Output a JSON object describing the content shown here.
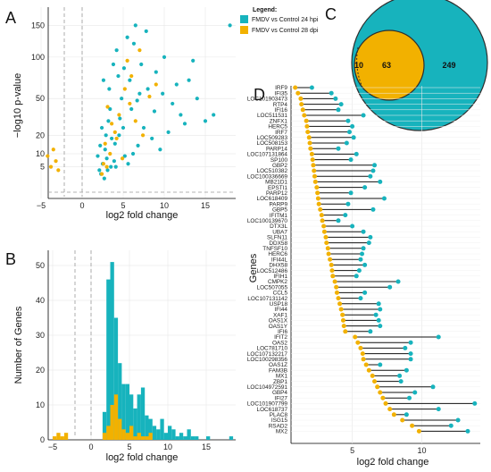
{
  "panels": {
    "a": "A",
    "b": "B",
    "c": "C",
    "d": "D"
  },
  "colors": {
    "teal": "#17b3bd",
    "gold": "#f2b100",
    "outline": "#2e2e2e"
  },
  "legend": {
    "title": "Legend:",
    "items": [
      "FMDV vs Control 24 hpi",
      "FMDV vs Control 28 dpi"
    ]
  },
  "chart_data": [
    {
      "type": "scatter",
      "xlabel": "log2 fold change",
      "ylabel": "−log10 p-value",
      "xticks": [
        "−5",
        "0",
        "5",
        "10",
        "15"
      ],
      "yticks": [
        "5",
        "10",
        "20",
        "50",
        "100",
        "150"
      ],
      "series": [
        {
          "name": "FMDV vs Control 24 hpi",
          "color": "teal",
          "points": [
            [
              2.1,
              4
            ],
            [
              2.5,
              6
            ],
            [
              3,
              8
            ],
            [
              3.5,
              5
            ],
            [
              2.8,
              12
            ],
            [
              4,
              15
            ],
            [
              4.5,
              20
            ],
            [
              5,
              25
            ],
            [
              3.2,
              30
            ],
            [
              6,
              40
            ],
            [
              7,
              55
            ],
            [
              2.6,
              70
            ],
            [
              3.8,
              90
            ],
            [
              4.2,
              110
            ],
            [
              5.5,
              130
            ],
            [
              6.5,
              150
            ],
            [
              8,
              60
            ],
            [
              9,
              80
            ],
            [
              10,
              100
            ],
            [
              11,
              45
            ],
            [
              12,
              35
            ],
            [
              13,
              70
            ],
            [
              14,
              50
            ],
            [
              15,
              30
            ],
            [
              18,
              150
            ],
            [
              16,
              35
            ],
            [
              7.5,
              25
            ],
            [
              8.5,
              18
            ],
            [
              9.5,
              12
            ],
            [
              2.3,
              3
            ],
            [
              2.7,
              2
            ],
            [
              3.1,
              4
            ],
            [
              3.9,
              7
            ],
            [
              5.2,
              9
            ],
            [
              6.8,
              14
            ],
            [
              4.8,
              50
            ],
            [
              5.8,
              70
            ],
            [
              7.2,
              90
            ],
            [
              3.4,
              40
            ],
            [
              2.9,
              20
            ],
            [
              4.1,
              5
            ],
            [
              5.6,
              6
            ],
            [
              6.2,
              10
            ],
            [
              10.5,
              22
            ],
            [
              12.5,
              28
            ],
            [
              1.9,
              9
            ],
            [
              2.2,
              14
            ],
            [
              3.6,
              18
            ],
            [
              4.6,
              32
            ],
            [
              5.1,
              85
            ],
            [
              6.3,
              120
            ],
            [
              7.8,
              140
            ],
            [
              8.8,
              38
            ],
            [
              9.8,
              55
            ],
            [
              11.5,
              65
            ],
            [
              2.4,
              25
            ],
            [
              3.3,
              60
            ],
            [
              4.4,
              75
            ],
            [
              6.7,
              48
            ],
            [
              13.5,
              95
            ]
          ]
        },
        {
          "name": "FMDV vs Control 28 dpi",
          "color": "gold",
          "points": [
            [
              -3.8,
              5
            ],
            [
              -3.2,
              7
            ],
            [
              -4.2,
              9
            ],
            [
              -2.9,
              4
            ],
            [
              -3.5,
              12
            ],
            [
              2.4,
              3
            ],
            [
              3,
              5
            ],
            [
              3.4,
              10
            ],
            [
              4,
              22
            ],
            [
              4.5,
              35
            ],
            [
              5.2,
              60
            ],
            [
              6,
              75
            ],
            [
              2.8,
              15
            ],
            [
              3.6,
              28
            ],
            [
              5.8,
              45
            ],
            [
              6.5,
              30
            ],
            [
              7.4,
              20
            ],
            [
              8.2,
              52
            ],
            [
              9,
              65
            ],
            [
              4.9,
              8
            ],
            [
              3.1,
              42
            ],
            [
              5.5,
              95
            ],
            [
              7,
              110
            ],
            [
              2.6,
              6
            ],
            [
              4.2,
              18
            ]
          ]
        }
      ]
    },
    {
      "type": "bar",
      "xlabel": "log2 fold change",
      "ylabel": "Number of Genes",
      "xticks": [
        "−5",
        "0",
        "5",
        "10",
        "15"
      ],
      "yticks": [
        "0",
        "10",
        "20",
        "30",
        "40",
        "50"
      ],
      "ylim": [
        0,
        52
      ],
      "bin_width": 0.5,
      "series": [
        {
          "name": "FMDV vs Control 24 hpi",
          "color": "teal",
          "bins": [
            [
              1.5,
              8
            ],
            [
              2,
              46
            ],
            [
              2.5,
              51
            ],
            [
              3,
              35
            ],
            [
              3.5,
              22
            ],
            [
              4,
              16
            ],
            [
              4.5,
              16
            ],
            [
              5,
              13
            ],
            [
              5.5,
              9
            ],
            [
              6,
              13
            ],
            [
              6.5,
              15
            ],
            [
              7,
              7
            ],
            [
              7.5,
              6
            ],
            [
              8,
              4
            ],
            [
              8.5,
              3
            ],
            [
              9,
              6
            ],
            [
              9.5,
              2
            ],
            [
              10,
              4
            ],
            [
              10.5,
              3
            ],
            [
              11,
              1
            ],
            [
              11.5,
              2
            ],
            [
              12,
              1
            ],
            [
              12.5,
              3
            ],
            [
              13,
              1
            ],
            [
              13.5,
              1
            ],
            [
              15,
              1
            ],
            [
              18,
              1
            ]
          ]
        },
        {
          "name": "FMDV vs Control 28 dpi",
          "color": "gold",
          "bins": [
            [
              -5,
              1
            ],
            [
              -4.5,
              2
            ],
            [
              -4,
              1
            ],
            [
              -3.5,
              2
            ],
            [
              1.5,
              2
            ],
            [
              2,
              4
            ],
            [
              2.5,
              10
            ],
            [
              3,
              13
            ],
            [
              3.5,
              6
            ],
            [
              4,
              3
            ],
            [
              4.5,
              2
            ],
            [
              5,
              4
            ],
            [
              5.5,
              1
            ],
            [
              6,
              2
            ],
            [
              6.5,
              1
            ],
            [
              7,
              1
            ],
            [
              7.5,
              2
            ]
          ]
        }
      ]
    },
    {
      "type": "venn",
      "sets": [
        {
          "name": "FMDV vs Control 24 hpi",
          "color": "teal",
          "unique": 249
        },
        {
          "name": "FMDV vs Control 28 dpi",
          "color": "gold",
          "unique": 10
        }
      ],
      "overlap": 63
    },
    {
      "type": "dumbbell",
      "xlabel": "log2 fold change",
      "ylabel": "Genes",
      "xticks": [
        "5",
        "10"
      ],
      "xlim": [
        0.6,
        14.2
      ],
      "genes": [
        "IRF9",
        "IFI35",
        "LOC101903473",
        "RTP4",
        "IFI16",
        "LOC511531",
        "ZNFX1",
        "HERC5",
        "IRF7",
        "LOC509283",
        "LOC508153",
        "PARP14",
        "LOC107131864",
        "SP100",
        "GBP2",
        "LOC510382",
        "LOC100336669",
        "MB21D1",
        "EPSTI1",
        "PARP12",
        "LOC618409",
        "PARP9",
        "GBP5",
        "IFITM1",
        "LOC100139670",
        "DTX3L",
        "UBA7",
        "SLFN11",
        "DDX58",
        "TNFSF10",
        "HERC6",
        "IFI44L",
        "DHX58",
        "LOC512486",
        "IFIH1",
        "CMPK2",
        "LOC507055",
        "CCL5",
        "LOC107131142",
        "USP18",
        "IFI44",
        "XAF1",
        "OAS1X",
        "OAS1Y",
        "IFI6",
        "IFIT2",
        "OAS2",
        "LOC781710",
        "LOC107132217",
        "LOC100298356",
        "OAS1Z",
        "FAM3B",
        "MX1",
        "ZBP1",
        "LOC104972591",
        "GBP4",
        "IFI27",
        "LOC101907799",
        "LOC618737",
        "PLAC8",
        "ISG15",
        "RSAD2",
        "MX2"
      ],
      "start": [
        0.9,
        1.1,
        1.3,
        1.35,
        1.45,
        1.55,
        1.7,
        1.75,
        1.8,
        1.9,
        1.95,
        2.0,
        2.1,
        2.15,
        2.2,
        2.25,
        2.3,
        2.35,
        2.45,
        2.5,
        2.55,
        2.6,
        2.7,
        2.8,
        2.85,
        2.95,
        3.0,
        3.1,
        3.15,
        3.25,
        3.3,
        3.4,
        3.5,
        3.55,
        3.6,
        3.75,
        3.85,
        3.9,
        4.0,
        4.1,
        4.2,
        4.3,
        4.35,
        4.4,
        4.5,
        5.2,
        5.4,
        5.6,
        5.75,
        5.8,
        6.0,
        6.2,
        6.45,
        6.6,
        6.8,
        7.0,
        7.2,
        7.4,
        7.7,
        8.0,
        8.6,
        9.3,
        9.8
      ],
      "end": [
        2.1,
        3.5,
        3.8,
        4.2,
        4.0,
        5.8,
        4.7,
        5.0,
        4.8,
        5.1,
        4.6,
        4.0,
        5.3,
        4.9,
        6.6,
        6.5,
        6.3,
        7.0,
        5.9,
        4.9,
        7.3,
        4.7,
        6.5,
        4.5,
        4.0,
        5.0,
        5.8,
        6.3,
        6.2,
        5.8,
        5.7,
        5.6,
        5.9,
        5.5,
        5.3,
        8.3,
        7.7,
        5.9,
        5.6,
        6.9,
        7.0,
        6.7,
        6.9,
        7.0,
        6.3,
        11.2,
        9.2,
        8.8,
        9.2,
        9.2,
        7.0,
        8.9,
        8.4,
        8.5,
        10.8,
        9.5,
        9.1,
        13.8,
        11.2,
        8.9,
        12.6,
        12.1,
        13.3
      ]
    }
  ]
}
